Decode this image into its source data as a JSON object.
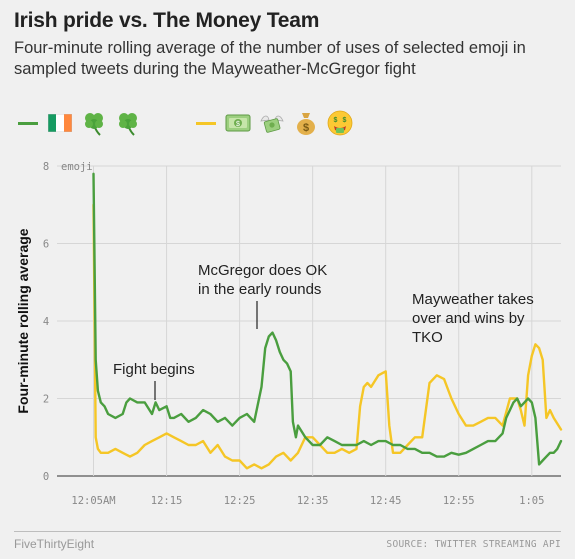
{
  "title": "Irish pride vs. The Money Team",
  "subtitle": "Four-minute rolling average of the number of uses of selected emoji in sampled tweets during the Mayweather-McGregor fight",
  "legend": {
    "green": {
      "color": "#4a9e3f",
      "emoji": [
        "flag-ireland",
        "shamrock",
        "shamrock"
      ]
    },
    "yellow": {
      "color": "#f5c626",
      "emoji": [
        "dollar-banknote",
        "money-with-wings",
        "money-bag",
        "money-mouth-face"
      ]
    }
  },
  "footer": {
    "left": "FiveThirtyEight",
    "right": "SOURCE: TWITTER STREAMING API"
  },
  "chart_data": {
    "type": "line",
    "title": "Irish pride vs. The Money Team",
    "ylabel": "Four-minute rolling average",
    "ylim": [
      0,
      8
    ],
    "yticks": [
      0,
      2,
      4,
      6,
      8
    ],
    "ytick_labels": [
      "0",
      "2",
      "4",
      "6",
      "8"
    ],
    "y_unit_label": "emoji",
    "xlim": [
      0,
      69
    ],
    "x_unit": "minutes after 12:00",
    "xticks": [
      5,
      15,
      25,
      35,
      45,
      55,
      65
    ],
    "xtick_labels": [
      "12:05AM",
      "12:15",
      "12:25",
      "12:35",
      "12:45",
      "12:55",
      "1:05"
    ],
    "grid": true,
    "series": [
      {
        "color": "#4a9e3f",
        "x": [
          5,
          5.3,
          5.6,
          6,
          6.5,
          7,
          8,
          9,
          9.5,
          10,
          11,
          12,
          13,
          13.5,
          14,
          15,
          15.5,
          16,
          17,
          18,
          19,
          20,
          21,
          22,
          23,
          24,
          25,
          26,
          27,
          28,
          28.5,
          29,
          29.5,
          30,
          30.5,
          31,
          31.5,
          32,
          32.3,
          32.7,
          33,
          34,
          35,
          36,
          37,
          38,
          39,
          40,
          41,
          42,
          43,
          44,
          45,
          46,
          47,
          48,
          49,
          50,
          51,
          52,
          53,
          54,
          55,
          56,
          57,
          58,
          59,
          60,
          61,
          61.5,
          62,
          62.5,
          63,
          63.5,
          64,
          64.5,
          65,
          65.5,
          66,
          66.5,
          67,
          67.5,
          68,
          68.5,
          69
        ],
        "y": [
          7.8,
          3.0,
          2.2,
          1.9,
          1.8,
          1.6,
          1.5,
          1.6,
          1.9,
          2.0,
          1.9,
          1.9,
          1.6,
          1.9,
          1.7,
          1.8,
          1.5,
          1.5,
          1.6,
          1.4,
          1.5,
          1.7,
          1.6,
          1.4,
          1.5,
          1.3,
          1.5,
          1.6,
          1.4,
          2.3,
          3.3,
          3.6,
          3.7,
          3.5,
          3.2,
          3.0,
          2.9,
          2.7,
          1.4,
          1.0,
          1.3,
          1.0,
          0.8,
          0.8,
          1.0,
          0.9,
          0.8,
          0.8,
          0.8,
          0.9,
          0.8,
          0.9,
          0.9,
          0.8,
          0.8,
          0.7,
          0.7,
          0.6,
          0.6,
          0.5,
          0.5,
          0.6,
          0.55,
          0.6,
          0.7,
          0.8,
          0.9,
          0.9,
          1.1,
          1.5,
          1.7,
          1.9,
          2.0,
          1.8,
          1.9,
          2.0,
          1.9,
          1.5,
          0.3,
          0.4,
          0.5,
          0.6,
          0.6,
          0.7,
          0.9
        ]
      },
      {
        "color": "#f5c626",
        "x": [
          5,
          5.3,
          5.6,
          6,
          7,
          8,
          9,
          10,
          11,
          12,
          13,
          14,
          15,
          16,
          17,
          18,
          19,
          20,
          21,
          22,
          23,
          24,
          25,
          26,
          27,
          28,
          29,
          30,
          31,
          32,
          33,
          34,
          35,
          36,
          37,
          38,
          39,
          40,
          41,
          41.5,
          42,
          42.5,
          43,
          44,
          45,
          45.5,
          46,
          47,
          48,
          49,
          50,
          51,
          52,
          53,
          54,
          55,
          56,
          57,
          58,
          59,
          60,
          61,
          62,
          63,
          63.5,
          64,
          64.5,
          65,
          65.5,
          66,
          66.5,
          67,
          67.5,
          68,
          69
        ],
        "y": [
          7.0,
          1.0,
          0.7,
          0.6,
          0.6,
          0.7,
          0.6,
          0.5,
          0.6,
          0.8,
          0.9,
          1.0,
          1.1,
          1.0,
          0.9,
          0.8,
          0.8,
          0.9,
          0.6,
          0.8,
          0.5,
          0.4,
          0.4,
          0.2,
          0.3,
          0.2,
          0.3,
          0.5,
          0.6,
          0.4,
          0.6,
          1.0,
          1.0,
          0.8,
          0.6,
          0.6,
          0.7,
          0.6,
          0.7,
          1.8,
          2.3,
          2.4,
          2.3,
          2.6,
          2.7,
          1.3,
          0.6,
          0.6,
          0.8,
          1.0,
          1.0,
          2.4,
          2.6,
          2.5,
          2.0,
          1.6,
          1.3,
          1.3,
          1.4,
          1.5,
          1.5,
          1.3,
          2.0,
          2.0,
          1.7,
          1.3,
          2.6,
          3.1,
          3.4,
          3.3,
          3.0,
          1.5,
          1.7,
          1.5,
          1.2
        ]
      }
    ],
    "annotations": [
      {
        "lines": [
          "Fight begins"
        ],
        "x": 15
      },
      {
        "lines": [
          "McGregor does OK",
          "in the early rounds"
        ],
        "x": 29
      },
      {
        "lines": [
          "Mayweather takes",
          "over and wins by",
          "TKO"
        ],
        "x": 57
      }
    ]
  }
}
